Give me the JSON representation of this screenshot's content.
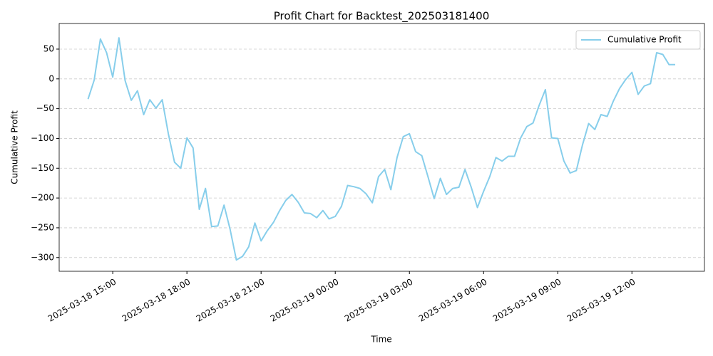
{
  "chart_data": {
    "type": "line",
    "title": "Profit Chart for Backtest_202503181400",
    "xlabel": "Time",
    "ylabel": "Cumulative Profit",
    "x": [
      "2025-03-18 14:00",
      "2025-03-18 14:15",
      "2025-03-18 14:30",
      "2025-03-18 14:45",
      "2025-03-18 15:00",
      "2025-03-18 15:15",
      "2025-03-18 15:30",
      "2025-03-18 15:45",
      "2025-03-18 16:00",
      "2025-03-18 16:15",
      "2025-03-18 16:30",
      "2025-03-18 16:45",
      "2025-03-18 17:00",
      "2025-03-18 17:15",
      "2025-03-18 17:30",
      "2025-03-18 17:45",
      "2025-03-18 18:00",
      "2025-03-18 18:15",
      "2025-03-18 18:30",
      "2025-03-18 18:45",
      "2025-03-18 19:00",
      "2025-03-18 19:15",
      "2025-03-18 19:30",
      "2025-03-18 19:45",
      "2025-03-18 20:00",
      "2025-03-18 20:15",
      "2025-03-18 20:30",
      "2025-03-18 20:45",
      "2025-03-18 21:00",
      "2025-03-18 21:15",
      "2025-03-18 21:30",
      "2025-03-18 21:45",
      "2025-03-18 22:00",
      "2025-03-18 22:15",
      "2025-03-18 22:30",
      "2025-03-18 22:45",
      "2025-03-18 23:00",
      "2025-03-18 23:15",
      "2025-03-18 23:30",
      "2025-03-18 23:45",
      "2025-03-19 00:00",
      "2025-03-19 00:15",
      "2025-03-19 00:30",
      "2025-03-19 00:45",
      "2025-03-19 01:00",
      "2025-03-19 01:15",
      "2025-03-19 01:30",
      "2025-03-19 01:45",
      "2025-03-19 02:00",
      "2025-03-19 02:15",
      "2025-03-19 02:30",
      "2025-03-19 02:45",
      "2025-03-19 03:00",
      "2025-03-19 03:15",
      "2025-03-19 03:30",
      "2025-03-19 03:45",
      "2025-03-19 04:00",
      "2025-03-19 04:15",
      "2025-03-19 04:30",
      "2025-03-19 04:45",
      "2025-03-19 05:00",
      "2025-03-19 05:15",
      "2025-03-19 05:30",
      "2025-03-19 05:45",
      "2025-03-19 06:00",
      "2025-03-19 06:15",
      "2025-03-19 06:30",
      "2025-03-19 06:45",
      "2025-03-19 07:00",
      "2025-03-19 07:15",
      "2025-03-19 07:30",
      "2025-03-19 07:45",
      "2025-03-19 08:00",
      "2025-03-19 08:15",
      "2025-03-19 08:30",
      "2025-03-19 08:45",
      "2025-03-19 09:00",
      "2025-03-19 09:15",
      "2025-03-19 09:30",
      "2025-03-19 09:45",
      "2025-03-19 10:00",
      "2025-03-19 10:15",
      "2025-03-19 10:30",
      "2025-03-19 10:45",
      "2025-03-19 11:00",
      "2025-03-19 11:15",
      "2025-03-19 11:30",
      "2025-03-19 11:45",
      "2025-03-19 12:00",
      "2025-03-19 12:15",
      "2025-03-19 12:30",
      "2025-03-19 12:45",
      "2025-03-19 13:00",
      "2025-03-19 13:15",
      "2025-03-19 13:30",
      "2025-03-19 13:45"
    ],
    "series": [
      {
        "name": "Cumulative Profit",
        "color": "#87ceeb",
        "values": [
          -34,
          -2,
          67,
          44,
          3,
          69,
          -3,
          -36,
          -20,
          -60,
          -35,
          -49,
          -35,
          -92,
          -140,
          -150,
          -99,
          -116,
          -219,
          -184,
          -248,
          -247,
          -212,
          -253,
          -304,
          -298,
          -282,
          -242,
          -272,
          -255,
          -241,
          -221,
          -204,
          -194,
          -207,
          -225,
          -226,
          -233,
          -221,
          -235,
          -231,
          -214,
          -179,
          -181,
          -184,
          -193,
          -208,
          -164,
          -152,
          -186,
          -132,
          -97,
          -92,
          -122,
          -129,
          -164,
          -201,
          -167,
          -194,
          -184,
          -182,
          -152,
          -182,
          -216,
          -189,
          -164,
          -132,
          -138,
          -130,
          -130,
          -99,
          -80,
          -74,
          -44,
          -18,
          -99,
          -100,
          -138,
          -158,
          -154,
          -111,
          -75,
          -85,
          -60,
          -63,
          -37,
          -16,
          -1,
          11,
          -26,
          -12,
          -8,
          44,
          41,
          24,
          24
        ]
      }
    ],
    "xlim": [
      "2025-03-18 12:50",
      "2025-03-19 14:56"
    ],
    "xticks": [
      "2025-03-18 15:00",
      "2025-03-18 18:00",
      "2025-03-18 21:00",
      "2025-03-19 00:00",
      "2025-03-19 03:00",
      "2025-03-19 06:00",
      "2025-03-19 09:00",
      "2025-03-19 12:00"
    ],
    "ylim": [
      -323,
      93
    ],
    "yticks": [
      {
        "value": -300,
        "label": "−300"
      },
      {
        "value": -250,
        "label": "−250"
      },
      {
        "value": -200,
        "label": "−200"
      },
      {
        "value": -150,
        "label": "−150"
      },
      {
        "value": -100,
        "label": "−100"
      },
      {
        "value": -50,
        "label": "−50"
      },
      0,
      50
    ],
    "grid": "y",
    "legend": "upper right"
  }
}
